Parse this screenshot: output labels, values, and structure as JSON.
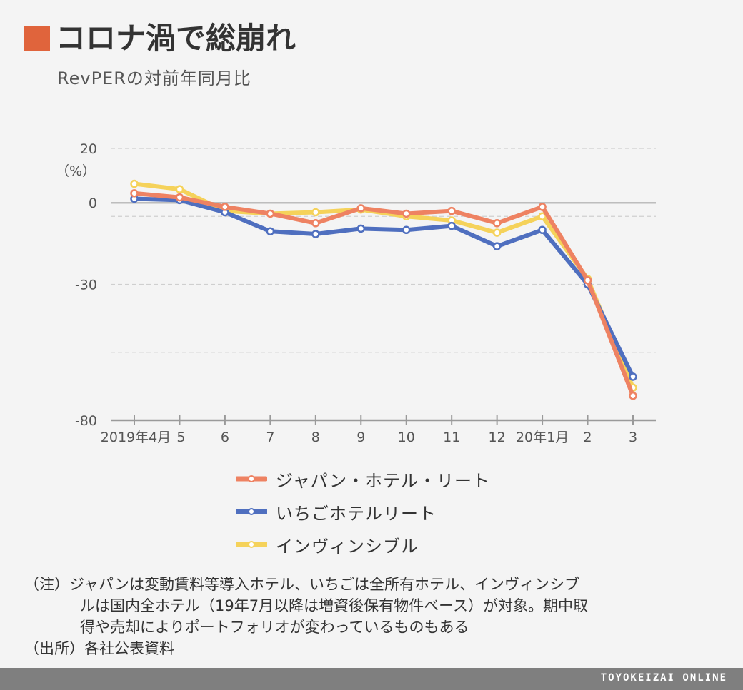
{
  "header": {
    "title": "コロナ渦で総崩れ",
    "subtitle": "RevPERの対前年同月比",
    "accent_color": "#e0643c"
  },
  "chart_data": {
    "type": "line",
    "categories": [
      "2019年4月",
      "5",
      "6",
      "7",
      "8",
      "9",
      "10",
      "11",
      "12",
      "20年1月",
      "2",
      "3"
    ],
    "y_unit_label": "（%）",
    "y_ticks": [
      20,
      0,
      -30,
      -80
    ],
    "y_gridlines": [
      20,
      -5,
      -30,
      -55
    ],
    "ylim": [
      -80,
      20
    ],
    "grid": true,
    "legend_position": "bottom",
    "series": [
      {
        "name": "インヴィンシブル",
        "color": "#f5d25a",
        "values": [
          7,
          5,
          -3,
          -4,
          -3.5,
          -2.5,
          -5,
          -6.5,
          -11,
          -5,
          -28,
          -68
        ]
      },
      {
        "name": "いちごホテルリート",
        "color": "#4f6fbf",
        "values": [
          1.5,
          1,
          -3.5,
          -10.5,
          -11.5,
          -9.5,
          -10,
          -8.5,
          -16,
          -10,
          -30,
          -64
        ]
      },
      {
        "name": "ジャパン・ホテル・リート",
        "color": "#ee8262",
        "values": [
          3.5,
          2,
          -1.5,
          -4,
          -7.5,
          -2,
          -4,
          -3,
          -7.5,
          -1.5,
          -28.5,
          -71
        ]
      }
    ]
  },
  "legend": [
    {
      "label": "ジャパン・ホテル・リート",
      "color": "#ee8262"
    },
    {
      "label": "いちごホテルリート",
      "color": "#4f6fbf"
    },
    {
      "label": "インヴィンシブル",
      "color": "#f5d25a"
    }
  ],
  "notes": {
    "line1": "（注）ジャパンは変動賃料等導入ホテル、いちごは全所有ホテル、インヴィンシブ",
    "line2": "ルは国内全ホテル（19年7月以降は増資後保有物件ベース）が対象。期中取",
    "line3": "得や売却によりポートフォリオが変わっているものもある",
    "source": "（出所）各社公表資料"
  },
  "footer": {
    "brand": "TOYOKEIZAI ONLINE"
  }
}
